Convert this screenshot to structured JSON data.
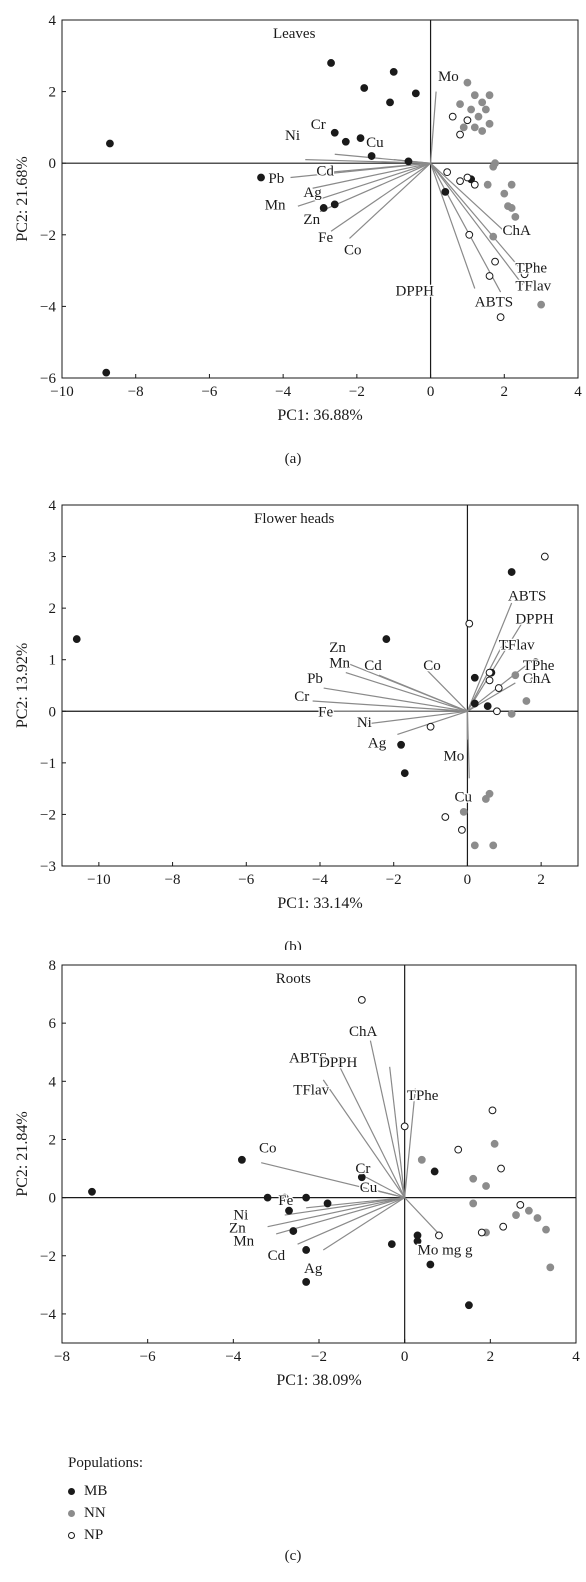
{
  "legend": {
    "title": "Populations:",
    "items": [
      {
        "key": "MB",
        "label": "MB",
        "fill": "#1a1a1a",
        "stroke": "#1a1a1a"
      },
      {
        "key": "NN",
        "label": "NN",
        "fill": "#8c8c8c",
        "stroke": "#8c8c8c"
      },
      {
        "key": "NP",
        "label": "NP",
        "fill": "#ffffff",
        "stroke": "#1a1a1a"
      }
    ]
  },
  "colors": {
    "axis": "#1a1a1a",
    "vector": "#8a8a8a",
    "MB": "#1a1a1a",
    "NN": "#8c8c8c",
    "NP": "#ffffff"
  },
  "chart_data": [
    {
      "type": "scatter",
      "caption": "(a)",
      "title": "Leaves",
      "xlabel": "PC1: 36.88%",
      "ylabel": "PC2: 21.68%",
      "xlim": [
        -10,
        4
      ],
      "ylim": [
        -6,
        4
      ],
      "xticks": [
        -10,
        -8,
        -6,
        -4,
        -2,
        0,
        2,
        4
      ],
      "yticks": [
        -6,
        -4,
        -2,
        0,
        2,
        4
      ],
      "vectors": [
        {
          "label": "Mo",
          "x": 0.15,
          "y": 2.0,
          "lx": 0.2,
          "ly": 2.3
        },
        {
          "label": "Cu",
          "x": -1.0,
          "y": 0.1,
          "lx": -1.75,
          "ly": 0.45
        },
        {
          "label": "Cr",
          "x": -2.6,
          "y": 0.25,
          "lx": -3.25,
          "ly": 0.95
        },
        {
          "label": "Ni",
          "x": -3.4,
          "y": 0.1,
          "lx": -3.95,
          "ly": 0.65
        },
        {
          "label": "Cd",
          "x": -2.7,
          "y": -0.25,
          "lx": -3.1,
          "ly": -0.35
        },
        {
          "label": "Pb",
          "x": -3.8,
          "y": -0.4,
          "lx": -4.4,
          "ly": -0.55
        },
        {
          "label": "Ag",
          "x": -3.2,
          "y": -0.7,
          "lx": -3.45,
          "ly": -0.95
        },
        {
          "label": "Mn",
          "x": -3.6,
          "y": -1.2,
          "lx": -4.5,
          "ly": -1.3
        },
        {
          "label": "Zn",
          "x": -3.0,
          "y": -1.35,
          "lx": -3.45,
          "ly": -1.7
        },
        {
          "label": "Fe",
          "x": -2.7,
          "y": -1.9,
          "lx": -3.05,
          "ly": -2.2
        },
        {
          "label": "Co",
          "x": -2.2,
          "y": -2.1,
          "lx": -2.35,
          "ly": -2.55
        },
        {
          "label": "ChA",
          "x": 2.0,
          "y": -1.9,
          "lx": 1.95,
          "ly": -2.0
        },
        {
          "label": "TPhe",
          "x": 2.4,
          "y": -2.9,
          "lx": 2.3,
          "ly": -3.05
        },
        {
          "label": "TFlav",
          "x": 2.5,
          "y": -3.4,
          "lx": 2.3,
          "ly": -3.55
        },
        {
          "label": "DPPH",
          "x": 1.2,
          "y": -3.5,
          "lx": -0.95,
          "ly": -3.7
        },
        {
          "label": "ABTS",
          "x": 1.9,
          "y": -3.6,
          "lx": 1.2,
          "ly": -4.0
        }
      ],
      "series": [
        {
          "name": "MB",
          "points": [
            [
              -8.7,
              0.55
            ],
            [
              -8.8,
              -5.85
            ],
            [
              -4.6,
              -0.4
            ],
            [
              -2.7,
              2.8
            ],
            [
              -2.6,
              0.85
            ],
            [
              -2.3,
              0.6
            ],
            [
              -1.8,
              2.1
            ],
            [
              -1.0,
              2.55
            ],
            [
              -1.1,
              1.7
            ],
            [
              -0.4,
              1.95
            ],
            [
              -1.9,
              0.7
            ],
            [
              -1.6,
              0.2
            ],
            [
              -2.6,
              -1.15
            ],
            [
              -2.9,
              -1.25
            ],
            [
              -0.6,
              0.05
            ],
            [
              1.1,
              -0.45
            ],
            [
              0.4,
              -0.8
            ]
          ]
        },
        {
          "name": "NN",
          "points": [
            [
              1.0,
              2.25
            ],
            [
              1.2,
              1.9
            ],
            [
              1.4,
              1.7
            ],
            [
              1.6,
              1.9
            ],
            [
              0.8,
              1.65
            ],
            [
              1.1,
              1.5
            ],
            [
              1.3,
              1.3
            ],
            [
              1.5,
              1.5
            ],
            [
              0.9,
              1.0
            ],
            [
              1.2,
              1.0
            ],
            [
              1.4,
              0.9
            ],
            [
              1.6,
              1.1
            ],
            [
              1.75,
              0.0
            ],
            [
              1.7,
              -0.1
            ],
            [
              2.2,
              -0.6
            ],
            [
              2.0,
              -0.85
            ],
            [
              2.1,
              -1.2
            ],
            [
              2.2,
              -1.25
            ],
            [
              2.3,
              -1.5
            ],
            [
              3.0,
              -3.95
            ],
            [
              1.7,
              -2.05
            ],
            [
              1.55,
              -0.6
            ]
          ]
        },
        {
          "name": "NP",
          "points": [
            [
              0.6,
              1.3
            ],
            [
              0.8,
              0.8
            ],
            [
              1.0,
              1.2
            ],
            [
              0.45,
              -0.25
            ],
            [
              1.2,
              -0.6
            ],
            [
              0.8,
              -0.5
            ],
            [
              1.05,
              -2.0
            ],
            [
              1.75,
              -2.75
            ],
            [
              1.6,
              -3.15
            ],
            [
              2.55,
              -3.1
            ],
            [
              1.9,
              -4.3
            ],
            [
              1.0,
              -0.4
            ]
          ]
        }
      ]
    },
    {
      "type": "scatter",
      "caption": "(b)",
      "title": "Flower heads",
      "xlabel": "PC1: 33.14%",
      "ylabel": "PC2: 13.92%",
      "xlim": [
        -11,
        3
      ],
      "ylim": [
        -3,
        4
      ],
      "xticks": [
        -10,
        -8,
        -6,
        -4,
        -2,
        0,
        2
      ],
      "yticks": [
        -3,
        -2,
        -1,
        0,
        1,
        2,
        3,
        4
      ],
      "vectors": [
        {
          "label": "ABTS",
          "x": 1.2,
          "y": 2.1,
          "lx": 1.1,
          "ly": 2.15
        },
        {
          "label": "DPPH",
          "x": 1.6,
          "y": 1.85,
          "lx": 1.3,
          "ly": 1.7
        },
        {
          "label": "TFlav",
          "x": 1.0,
          "y": 1.35,
          "lx": 0.85,
          "ly": 1.2
        },
        {
          "label": "TPhe",
          "x": 1.7,
          "y": 0.95,
          "lx": 1.5,
          "ly": 0.8
        },
        {
          "label": "ChA",
          "x": 1.3,
          "y": 0.55,
          "lx": 1.5,
          "ly": 0.55
        },
        {
          "label": "Co",
          "x": -1.1,
          "y": 0.8,
          "lx": -1.2,
          "ly": 0.8
        },
        {
          "label": "Zn",
          "x": -3.5,
          "y": 1.0,
          "lx": -3.75,
          "ly": 1.15
        },
        {
          "label": "Mn",
          "x": -3.3,
          "y": 0.75,
          "lx": -3.75,
          "ly": 0.85
        },
        {
          "label": "Cd",
          "x": -2.4,
          "y": 0.7,
          "lx": -2.8,
          "ly": 0.8
        },
        {
          "label": "Pb",
          "x": -3.9,
          "y": 0.45,
          "lx": -4.35,
          "ly": 0.55
        },
        {
          "label": "Cr",
          "x": -4.2,
          "y": 0.2,
          "lx": -4.7,
          "ly": 0.2
        },
        {
          "label": "Fe",
          "x": -3.9,
          "y": 0.0,
          "lx": -4.05,
          "ly": -0.1
        },
        {
          "label": "Ni",
          "x": -2.8,
          "y": -0.25,
          "lx": -3.0,
          "ly": -0.3
        },
        {
          "label": "Ag",
          "x": -1.9,
          "y": -0.45,
          "lx": -2.7,
          "ly": -0.7
        },
        {
          "label": "Mo",
          "x": 0.0,
          "y": -0.55,
          "lx": -0.65,
          "ly": -0.95
        },
        {
          "label": "Cu",
          "x": 0.05,
          "y": -1.3,
          "lx": -0.35,
          "ly": -1.75
        }
      ],
      "series": [
        {
          "name": "MB",
          "points": [
            [
              -10.6,
              1.4
            ],
            [
              -2.2,
              1.4
            ],
            [
              -1.8,
              -0.65
            ],
            [
              -1.7,
              -1.2
            ],
            [
              0.2,
              0.65
            ],
            [
              0.65,
              0.75
            ],
            [
              0.55,
              0.1
            ],
            [
              0.2,
              0.15
            ],
            [
              1.2,
              2.7
            ],
            [
              1.85,
              0.95
            ]
          ]
        },
        {
          "name": "NN",
          "points": [
            [
              1.2,
              -0.05
            ],
            [
              1.6,
              0.2
            ],
            [
              1.3,
              0.7
            ],
            [
              1.8,
              0.6
            ],
            [
              0.6,
              -1.6
            ],
            [
              0.5,
              -1.7
            ],
            [
              -0.1,
              -1.95
            ],
            [
              0.2,
              -2.6
            ],
            [
              0.7,
              -2.6
            ]
          ]
        },
        {
          "name": "NP",
          "points": [
            [
              2.1,
              3.0
            ],
            [
              0.05,
              1.7
            ],
            [
              1.1,
              1.3
            ],
            [
              0.6,
              0.75
            ],
            [
              0.6,
              0.6
            ],
            [
              0.85,
              0.45
            ],
            [
              0.8,
              0.0
            ],
            [
              -1.0,
              -0.3
            ],
            [
              -0.6,
              -2.05
            ],
            [
              -0.15,
              -2.3
            ]
          ]
        }
      ]
    },
    {
      "type": "scatter",
      "caption": "(c)",
      "title": "Roots",
      "xlabel": "PC1: 38.09%",
      "ylabel": "PC2: 21.84%",
      "xlim": [
        -8,
        4
      ],
      "ylim": [
        -5,
        8
      ],
      "xticks": [
        -8,
        -6,
        -4,
        -2,
        0,
        2,
        4
      ],
      "yticks": [
        -4,
        -2,
        0,
        2,
        4,
        6,
        8
      ],
      "vectors": [
        {
          "label": "ChA",
          "x": -0.8,
          "y": 5.4,
          "lx": -1.3,
          "ly": 5.55
        },
        {
          "label": "ABTS",
          "x": -1.55,
          "y": 4.6,
          "lx": -2.7,
          "ly": 4.65
        },
        {
          "label": "DPPH",
          "x": -0.35,
          "y": 4.5,
          "lx": -2.0,
          "ly": 4.5
        },
        {
          "label": "TFlav",
          "x": -1.9,
          "y": 4.05,
          "lx": -2.6,
          "ly": 3.55
        },
        {
          "label": "TPhe",
          "x": 0.25,
          "y": 3.75,
          "lx": 0.05,
          "ly": 3.35
        },
        {
          "label": "Cr",
          "x": -0.9,
          "y": 0.7,
          "lx": -1.15,
          "ly": 0.85
        },
        {
          "label": "Cu",
          "x": -0.8,
          "y": 0.3,
          "lx": -1.05,
          "ly": 0.2
        },
        {
          "label": "Co",
          "x": -3.35,
          "y": 1.2,
          "lx": -3.4,
          "ly": 1.55
        },
        {
          "label": "Fe",
          "x": -2.3,
          "y": -0.35,
          "lx": -2.95,
          "ly": -0.25
        },
        {
          "label": "Ni",
          "x": -2.8,
          "y": -0.6,
          "lx": -4.0,
          "ly": -0.75
        },
        {
          "label": "Zn",
          "x": -3.2,
          "y": -1.0,
          "lx": -4.1,
          "ly": -1.2
        },
        {
          "label": "Mn",
          "x": -3.0,
          "y": -1.25,
          "lx": -4.0,
          "ly": -1.65
        },
        {
          "label": "Cd",
          "x": -2.5,
          "y": -1.6,
          "lx": -3.2,
          "ly": -2.15
        },
        {
          "label": "Ag",
          "x": -1.9,
          "y": -1.8,
          "lx": -2.35,
          "ly": -2.6
        },
        {
          "label": "Mo mg g",
          "x": 0.8,
          "y": -1.25,
          "lx": 0.3,
          "ly": -1.95
        }
      ],
      "series": [
        {
          "name": "MB",
          "points": [
            [
              -7.3,
              0.2
            ],
            [
              -3.8,
              1.3
            ],
            [
              -3.2,
              0.0
            ],
            [
              -2.8,
              0.0
            ],
            [
              -2.3,
              0.0
            ],
            [
              -1.8,
              -0.2
            ],
            [
              -2.7,
              -0.45
            ],
            [
              -2.6,
              -1.15
            ],
            [
              -2.3,
              -1.8
            ],
            [
              -2.3,
              -2.9
            ],
            [
              -0.3,
              -1.6
            ],
            [
              -1.0,
              0.7
            ],
            [
              0.3,
              -1.3
            ],
            [
              0.3,
              -1.5
            ],
            [
              0.6,
              -2.3
            ],
            [
              0.7,
              0.9
            ],
            [
              1.5,
              -3.7
            ]
          ]
        },
        {
          "name": "NN",
          "points": [
            [
              0.4,
              1.3
            ],
            [
              1.6,
              0.65
            ],
            [
              2.1,
              1.85
            ],
            [
              1.9,
              0.4
            ],
            [
              1.6,
              -0.2
            ],
            [
              1.9,
              -1.2
            ],
            [
              2.6,
              -0.6
            ],
            [
              2.9,
              -0.45
            ],
            [
              3.1,
              -0.7
            ],
            [
              3.3,
              -1.1
            ],
            [
              3.4,
              -2.4
            ]
          ]
        },
        {
          "name": "NP",
          "points": [
            [
              -1.0,
              6.8
            ],
            [
              0.0,
              2.45
            ],
            [
              1.25,
              1.65
            ],
            [
              2.05,
              3.0
            ],
            [
              2.25,
              1.0
            ],
            [
              2.7,
              -0.25
            ],
            [
              2.3,
              -1.0
            ],
            [
              1.8,
              -1.2
            ],
            [
              0.8,
              -1.3
            ]
          ]
        }
      ]
    }
  ]
}
